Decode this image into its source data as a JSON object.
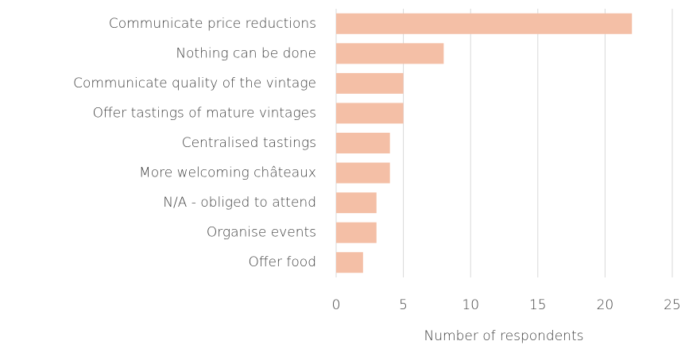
{
  "chart_data": {
    "type": "bar",
    "orientation": "horizontal",
    "x_label": "Number of respondents",
    "categories": [
      "Communicate price reductions",
      "Nothing can be done",
      "Communicate quality of the vintage",
      "Offer tastings of mature vintages",
      "Centralised tastings",
      "More welcoming châteaux",
      "N/A - obliged to attend",
      "Organise events",
      "Offer food"
    ],
    "values": [
      22,
      8,
      5,
      5,
      4,
      4,
      3,
      3,
      2
    ],
    "color": "#f4bfa6",
    "xlim": [
      0,
      25
    ],
    "xticks": [
      0,
      5,
      10,
      15,
      20,
      25
    ],
    "grid": true
  }
}
